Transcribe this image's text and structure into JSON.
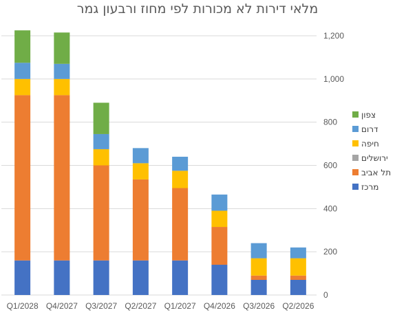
{
  "chart_data": {
    "type": "bar",
    "stacked": true,
    "title": "מלאי דירות לא מכורות לפי מחוז ורבעון גמר",
    "categories": [
      "Q1/2028",
      "Q4/2027",
      "Q3/2027",
      "Q2/2027",
      "Q1/2027",
      "Q4/2026",
      "Q3/2026",
      "Q2/2026"
    ],
    "ylim": [
      0,
      1200
    ],
    "yticks": [
      0,
      200,
      400,
      600,
      800,
      "1,000",
      "1,200"
    ],
    "ytick_values": [
      0,
      200,
      400,
      600,
      800,
      1000,
      1200
    ],
    "yaxis_side": "right",
    "grid": true,
    "legend_position": "right",
    "series": [
      {
        "name": "מרכז",
        "color": "#4472C4",
        "values": [
          160,
          160,
          160,
          160,
          160,
          140,
          70,
          70
        ]
      },
      {
        "name": "תל אביב",
        "color": "#ED7D31",
        "values": [
          765,
          765,
          440,
          375,
          335,
          175,
          20,
          20
        ]
      },
      {
        "name": "ירושלים",
        "color": "#A5A5A5",
        "values": [
          0,
          0,
          0,
          0,
          0,
          0,
          0,
          0
        ]
      },
      {
        "name": "חיפה",
        "color": "#FFC000",
        "values": [
          75,
          75,
          75,
          75,
          80,
          75,
          80,
          80
        ]
      },
      {
        "name": "דרום",
        "color": "#5B9BD5",
        "values": [
          75,
          70,
          70,
          70,
          65,
          75,
          70,
          50
        ]
      },
      {
        "name": "צפון",
        "color": "#70AD47",
        "values": [
          150,
          145,
          145,
          0,
          0,
          0,
          0,
          0
        ]
      }
    ]
  }
}
